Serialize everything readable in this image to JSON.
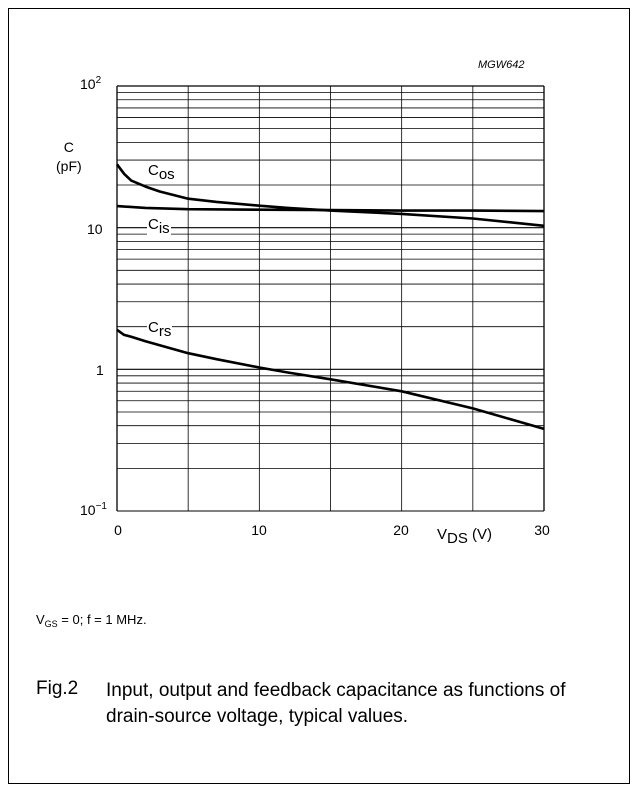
{
  "chart_code": "MGW642",
  "y_axis": {
    "label_line1": "C",
    "label_line2": "(pF)"
  },
  "y_ticks": [
    {
      "base": "10",
      "exp": "2"
    },
    {
      "base": "10",
      "exp": ""
    },
    {
      "base": "1",
      "exp": ""
    },
    {
      "base": "10",
      "exp": "−1"
    }
  ],
  "x_ticks": [
    "0",
    "10",
    "20",
    "30"
  ],
  "x_axis": {
    "label_main": "V",
    "label_sub": "DS",
    "label_unit": "(V)"
  },
  "curve_labels": {
    "cos": {
      "main": "C",
      "sub": "os"
    },
    "cis": {
      "main": "C",
      "sub": "is"
    },
    "crs": {
      "main": "C",
      "sub": "rs"
    }
  },
  "conditions": {
    "vgs_main": "V",
    "vgs_sub": "GS",
    "rest": " = 0; f = 1 MHz."
  },
  "figure": {
    "number": "Fig.2",
    "caption": "Input, output and feedback capacitance as functions of drain-source voltage, typical values."
  },
  "chart_data": {
    "type": "line",
    "x_scale": "linear",
    "y_scale": "log",
    "xlim": [
      0,
      30
    ],
    "ylim": [
      0.1,
      100
    ],
    "grid": true,
    "series": [
      {
        "name": "Cos",
        "x": [
          0,
          0.5,
          1,
          2,
          3,
          5,
          7,
          10,
          12,
          15,
          20,
          25,
          30
        ],
        "y": [
          28,
          24,
          21.5,
          19.5,
          18,
          16,
          15.2,
          14.3,
          13.8,
          13.2,
          12.5,
          11.6,
          10.3
        ]
      },
      {
        "name": "Cis",
        "x": [
          0,
          2,
          5,
          10,
          15,
          20,
          25,
          30
        ],
        "y": [
          14.2,
          13.8,
          13.5,
          13.4,
          13.3,
          13.2,
          13.2,
          13.1
        ]
      },
      {
        "name": "Crs",
        "x": [
          0,
          0.5,
          1,
          2,
          3,
          5,
          7,
          10,
          12,
          15,
          20,
          25,
          30
        ],
        "y": [
          1.9,
          1.75,
          1.7,
          1.58,
          1.48,
          1.3,
          1.18,
          1.03,
          0.95,
          0.85,
          0.7,
          0.53,
          0.38
        ]
      }
    ]
  }
}
